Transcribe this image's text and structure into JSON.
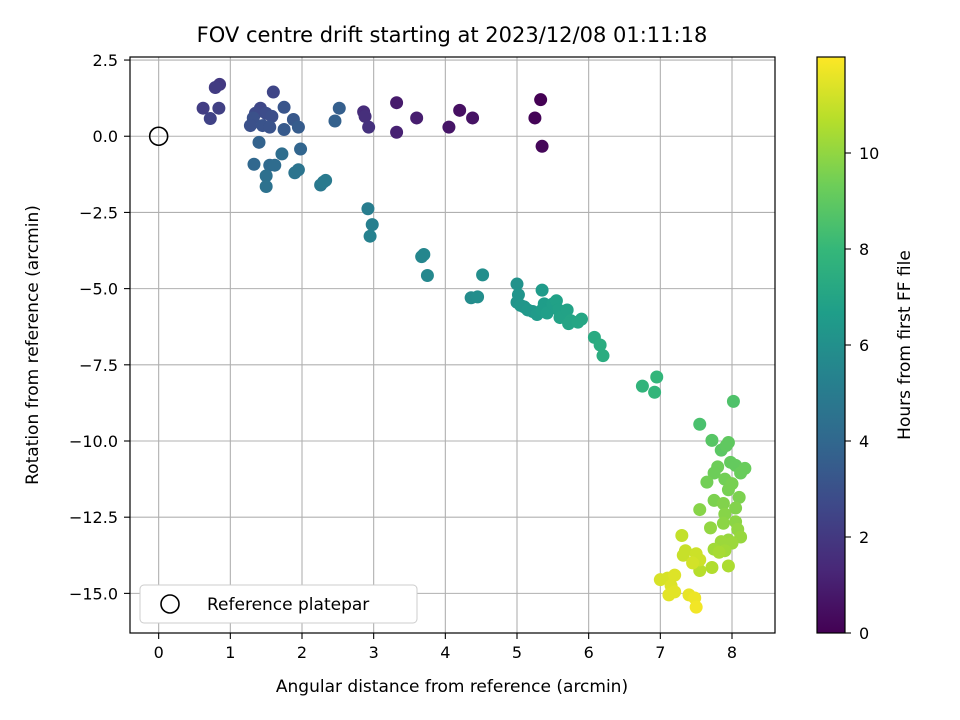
{
  "chart_data": {
    "type": "scatter",
    "title": "FOV centre drift starting at 2023/12/08 01:11:18",
    "xlabel": "Angular distance from reference (arcmin)",
    "ylabel": "Rotation from reference (arcmin)",
    "xlim": [
      -0.4,
      8.6
    ],
    "ylim": [
      -16.3,
      2.6
    ],
    "xticks": [
      0,
      1,
      2,
      3,
      4,
      5,
      6,
      7,
      8
    ],
    "yticks": [
      2.5,
      0.0,
      -2.5,
      -5.0,
      -7.5,
      -10.0,
      -12.5,
      -15.0
    ],
    "ytick_labels": [
      "2.5",
      "0.0",
      "−2.5",
      "−5.0",
      "−7.5",
      "−10.0",
      "−12.5",
      "−15.0"
    ],
    "grid": true,
    "legend": {
      "placement": "bottom-left",
      "entries": [
        "Reference platepar"
      ]
    },
    "reference_point": {
      "x": 0,
      "y": 0
    },
    "colorbar": {
      "label": "Hours from first FF file",
      "range": [
        0,
        12
      ],
      "ticks": [
        0,
        2,
        4,
        6,
        8,
        10
      ],
      "colormap": [
        "#440154",
        "#482878",
        "#3e4989",
        "#31688e",
        "#26828e",
        "#1f9e89",
        "#35b779",
        "#6ece58",
        "#b5de2b",
        "#fde725"
      ]
    },
    "points": [
      {
        "x": 5.33,
        "y": 1.2,
        "t": 0.0
      },
      {
        "x": 5.25,
        "y": 0.6,
        "t": 0.1
      },
      {
        "x": 5.35,
        "y": -0.33,
        "t": 0.2
      },
      {
        "x": 4.2,
        "y": 0.85,
        "t": 0.5
      },
      {
        "x": 4.38,
        "y": 0.6,
        "t": 0.6
      },
      {
        "x": 4.05,
        "y": 0.3,
        "t": 0.7
      },
      {
        "x": 3.32,
        "y": 1.1,
        "t": 0.9
      },
      {
        "x": 3.6,
        "y": 0.6,
        "t": 1.0
      },
      {
        "x": 3.32,
        "y": 0.13,
        "t": 1.1
      },
      {
        "x": 2.86,
        "y": 0.8,
        "t": 1.5
      },
      {
        "x": 2.88,
        "y": 0.65,
        "t": 1.6
      },
      {
        "x": 2.93,
        "y": 0.3,
        "t": 1.7
      },
      {
        "x": 0.85,
        "y": 1.7,
        "t": 2.0
      },
      {
        "x": 0.79,
        "y": 1.6,
        "t": 2.1
      },
      {
        "x": 0.62,
        "y": 0.92,
        "t": 2.2
      },
      {
        "x": 0.84,
        "y": 0.92,
        "t": 2.3
      },
      {
        "x": 0.72,
        "y": 0.58,
        "t": 2.4
      },
      {
        "x": 1.6,
        "y": 1.45,
        "t": 2.5
      },
      {
        "x": 1.42,
        "y": 0.92,
        "t": 2.6
      },
      {
        "x": 1.35,
        "y": 0.75,
        "t": 2.7
      },
      {
        "x": 1.5,
        "y": 0.75,
        "t": 2.8
      },
      {
        "x": 1.58,
        "y": 0.65,
        "t": 2.9
      },
      {
        "x": 1.32,
        "y": 0.6,
        "t": 3.0
      },
      {
        "x": 1.28,
        "y": 0.35,
        "t": 3.0
      },
      {
        "x": 1.45,
        "y": 0.35,
        "t": 3.1
      },
      {
        "x": 1.55,
        "y": 0.3,
        "t": 3.1
      },
      {
        "x": 1.75,
        "y": 0.95,
        "t": 3.2
      },
      {
        "x": 1.88,
        "y": 0.55,
        "t": 3.3
      },
      {
        "x": 1.75,
        "y": 0.22,
        "t": 3.4
      },
      {
        "x": 1.95,
        "y": 0.3,
        "t": 3.5
      },
      {
        "x": 2.52,
        "y": 0.92,
        "t": 3.6
      },
      {
        "x": 2.46,
        "y": 0.5,
        "t": 3.7
      },
      {
        "x": 1.4,
        "y": -0.2,
        "t": 3.8
      },
      {
        "x": 1.98,
        "y": -0.42,
        "t": 3.9
      },
      {
        "x": 1.33,
        "y": -0.92,
        "t": 4.0
      },
      {
        "x": 1.55,
        "y": -0.95,
        "t": 4.1
      },
      {
        "x": 1.62,
        "y": -0.95,
        "t": 4.2
      },
      {
        "x": 1.72,
        "y": -0.58,
        "t": 4.3
      },
      {
        "x": 1.5,
        "y": -1.3,
        "t": 4.4
      },
      {
        "x": 1.5,
        "y": -1.65,
        "t": 4.5
      },
      {
        "x": 1.9,
        "y": -1.2,
        "t": 4.6
      },
      {
        "x": 1.95,
        "y": -1.1,
        "t": 4.6
      },
      {
        "x": 2.26,
        "y": -1.6,
        "t": 4.8
      },
      {
        "x": 2.3,
        "y": -1.5,
        "t": 4.9
      },
      {
        "x": 2.33,
        "y": -1.45,
        "t": 4.9
      },
      {
        "x": 2.92,
        "y": -2.38,
        "t": 5.1
      },
      {
        "x": 2.98,
        "y": -2.9,
        "t": 5.2
      },
      {
        "x": 2.95,
        "y": -3.28,
        "t": 5.3
      },
      {
        "x": 3.67,
        "y": -3.95,
        "t": 5.5
      },
      {
        "x": 3.7,
        "y": -3.88,
        "t": 5.5
      },
      {
        "x": 3.75,
        "y": -4.57,
        "t": 5.6
      },
      {
        "x": 4.36,
        "y": -5.3,
        "t": 5.8
      },
      {
        "x": 4.45,
        "y": -5.27,
        "t": 5.9
      },
      {
        "x": 4.52,
        "y": -4.55,
        "t": 5.9
      },
      {
        "x": 5.0,
        "y": -4.85,
        "t": 6.1
      },
      {
        "x": 5.02,
        "y": -5.2,
        "t": 6.2
      },
      {
        "x": 5.0,
        "y": -5.45,
        "t": 6.2
      },
      {
        "x": 5.05,
        "y": -5.55,
        "t": 6.3
      },
      {
        "x": 5.1,
        "y": -5.6,
        "t": 6.3
      },
      {
        "x": 5.15,
        "y": -5.7,
        "t": 6.4
      },
      {
        "x": 5.22,
        "y": -5.75,
        "t": 6.4
      },
      {
        "x": 5.28,
        "y": -5.85,
        "t": 6.5
      },
      {
        "x": 5.35,
        "y": -5.05,
        "t": 6.5
      },
      {
        "x": 5.38,
        "y": -5.5,
        "t": 6.6
      },
      {
        "x": 5.35,
        "y": -5.7,
        "t": 6.6
      },
      {
        "x": 5.42,
        "y": -5.8,
        "t": 6.7
      },
      {
        "x": 5.5,
        "y": -5.5,
        "t": 6.7
      },
      {
        "x": 5.55,
        "y": -5.4,
        "t": 6.8
      },
      {
        "x": 5.58,
        "y": -5.7,
        "t": 6.8
      },
      {
        "x": 5.6,
        "y": -5.95,
        "t": 6.9
      },
      {
        "x": 5.7,
        "y": -5.7,
        "t": 6.9
      },
      {
        "x": 5.75,
        "y": -6.05,
        "t": 7.0
      },
      {
        "x": 5.72,
        "y": -6.15,
        "t": 7.0
      },
      {
        "x": 5.85,
        "y": -6.1,
        "t": 7.1
      },
      {
        "x": 5.9,
        "y": -6.0,
        "t": 7.1
      },
      {
        "x": 6.08,
        "y": -6.6,
        "t": 7.3
      },
      {
        "x": 6.16,
        "y": -6.85,
        "t": 7.4
      },
      {
        "x": 6.2,
        "y": -7.2,
        "t": 7.4
      },
      {
        "x": 6.75,
        "y": -8.2,
        "t": 7.8
      },
      {
        "x": 6.95,
        "y": -7.9,
        "t": 7.9
      },
      {
        "x": 6.92,
        "y": -8.4,
        "t": 7.9
      },
      {
        "x": 7.55,
        "y": -9.45,
        "t": 8.5
      },
      {
        "x": 8.02,
        "y": -8.7,
        "t": 8.6
      },
      {
        "x": 7.72,
        "y": -9.98,
        "t": 8.8
      },
      {
        "x": 7.85,
        "y": -10.3,
        "t": 8.9
      },
      {
        "x": 7.92,
        "y": -10.15,
        "t": 9.0
      },
      {
        "x": 7.95,
        "y": -10.05,
        "t": 9.0
      },
      {
        "x": 7.98,
        "y": -10.7,
        "t": 9.1
      },
      {
        "x": 8.05,
        "y": -10.8,
        "t": 9.1
      },
      {
        "x": 8.18,
        "y": -10.9,
        "t": 9.2
      },
      {
        "x": 8.12,
        "y": -11.05,
        "t": 9.2
      },
      {
        "x": 7.8,
        "y": -10.85,
        "t": 9.3
      },
      {
        "x": 7.75,
        "y": -11.05,
        "t": 9.3
      },
      {
        "x": 7.65,
        "y": -11.35,
        "t": 9.4
      },
      {
        "x": 7.9,
        "y": -11.25,
        "t": 9.4
      },
      {
        "x": 8.0,
        "y": -11.4,
        "t": 9.5
      },
      {
        "x": 7.95,
        "y": -11.6,
        "t": 9.5
      },
      {
        "x": 8.1,
        "y": -11.85,
        "t": 9.6
      },
      {
        "x": 7.75,
        "y": -11.95,
        "t": 9.6
      },
      {
        "x": 7.88,
        "y": -12.05,
        "t": 9.7
      },
      {
        "x": 8.05,
        "y": -12.2,
        "t": 9.7
      },
      {
        "x": 7.9,
        "y": -12.4,
        "t": 9.8
      },
      {
        "x": 7.55,
        "y": -12.25,
        "t": 9.8
      },
      {
        "x": 8.05,
        "y": -12.65,
        "t": 9.9
      },
      {
        "x": 7.88,
        "y": -12.7,
        "t": 9.9
      },
      {
        "x": 7.7,
        "y": -12.85,
        "t": 10.0
      },
      {
        "x": 8.08,
        "y": -12.9,
        "t": 10.0
      },
      {
        "x": 8.12,
        "y": -13.15,
        "t": 10.1
      },
      {
        "x": 7.95,
        "y": -13.25,
        "t": 10.1
      },
      {
        "x": 7.85,
        "y": -13.3,
        "t": 10.2
      },
      {
        "x": 8.0,
        "y": -13.35,
        "t": 10.2
      },
      {
        "x": 7.75,
        "y": -13.55,
        "t": 10.3
      },
      {
        "x": 7.9,
        "y": -13.6,
        "t": 10.3
      },
      {
        "x": 7.82,
        "y": -13.65,
        "t": 10.4
      },
      {
        "x": 7.95,
        "y": -14.1,
        "t": 10.5
      },
      {
        "x": 7.72,
        "y": -14.15,
        "t": 10.6
      },
      {
        "x": 7.55,
        "y": -14.25,
        "t": 10.7
      },
      {
        "x": 7.3,
        "y": -13.1,
        "t": 10.9
      },
      {
        "x": 7.35,
        "y": -13.6,
        "t": 11.0
      },
      {
        "x": 7.32,
        "y": -13.75,
        "t": 11.0
      },
      {
        "x": 7.5,
        "y": -13.7,
        "t": 11.1
      },
      {
        "x": 7.55,
        "y": -13.9,
        "t": 11.1
      },
      {
        "x": 7.45,
        "y": -14.0,
        "t": 11.2
      },
      {
        "x": 7.0,
        "y": -14.55,
        "t": 11.3
      },
      {
        "x": 7.1,
        "y": -14.5,
        "t": 11.3
      },
      {
        "x": 7.2,
        "y": -14.4,
        "t": 11.4
      },
      {
        "x": 7.15,
        "y": -14.75,
        "t": 11.4
      },
      {
        "x": 7.12,
        "y": -15.05,
        "t": 11.5
      },
      {
        "x": 7.2,
        "y": -14.95,
        "t": 11.5
      },
      {
        "x": 7.4,
        "y": -15.05,
        "t": 11.6
      },
      {
        "x": 7.48,
        "y": -15.15,
        "t": 11.7
      },
      {
        "x": 7.5,
        "y": -15.45,
        "t": 11.8
      }
    ]
  }
}
